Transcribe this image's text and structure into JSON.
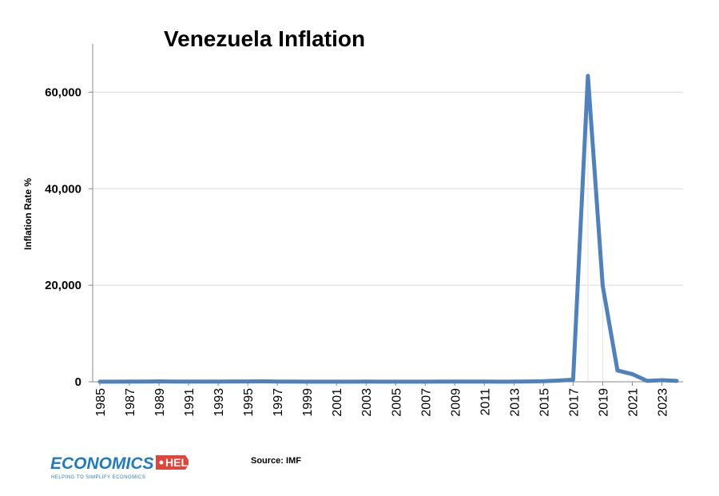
{
  "chart_data": {
    "type": "line",
    "title": "Venezuela Inflation",
    "xlabel": "",
    "ylabel": "Inflation Rate %",
    "x": [
      1985,
      1986,
      1987,
      1988,
      1989,
      1990,
      1991,
      1992,
      1993,
      1994,
      1995,
      1996,
      1997,
      1998,
      1999,
      2000,
      2001,
      2002,
      2003,
      2004,
      2005,
      2006,
      2007,
      2008,
      2009,
      2010,
      2011,
      2012,
      2013,
      2014,
      2015,
      2016,
      2017,
      2018,
      2019,
      2020,
      2021,
      2022,
      2023,
      2024
    ],
    "series": [
      {
        "name": "",
        "color": "#4f81bd",
        "values": [
          11,
          11,
          28,
          29,
          84,
          41,
          34,
          31,
          38,
          60,
          60,
          100,
          50,
          36,
          24,
          16,
          13,
          22,
          31,
          22,
          16,
          14,
          19,
          30,
          27,
          28,
          26,
          21,
          41,
          62,
          122,
          255,
          438,
          63374,
          19906,
          2355,
          1589,
          186,
          337,
          190
        ]
      }
    ],
    "x_tick_labels": [
      "1985",
      "1987",
      "1989",
      "1991",
      "1993",
      "1995",
      "1997",
      "1999",
      "2001",
      "2003",
      "2005",
      "2007",
      "2009",
      "2011",
      "2013",
      "2015",
      "2017",
      "2019",
      "2021",
      "2023"
    ],
    "y_ticks": [
      0,
      20000,
      40000,
      60000
    ],
    "y_tick_labels": [
      "0",
      "20,000",
      "40,000",
      "60,000"
    ],
    "ylim": [
      0,
      70000
    ],
    "grid": "horizontal",
    "legend": "none"
  },
  "source": "Source: IMF",
  "logo": {
    "word": "ECONOMICS",
    "badge": "HELP",
    "tagline": "HELPING TO SIMPLIFY ECONOMICS",
    "blue": "#1f7bc1",
    "red": "#e0453a"
  }
}
